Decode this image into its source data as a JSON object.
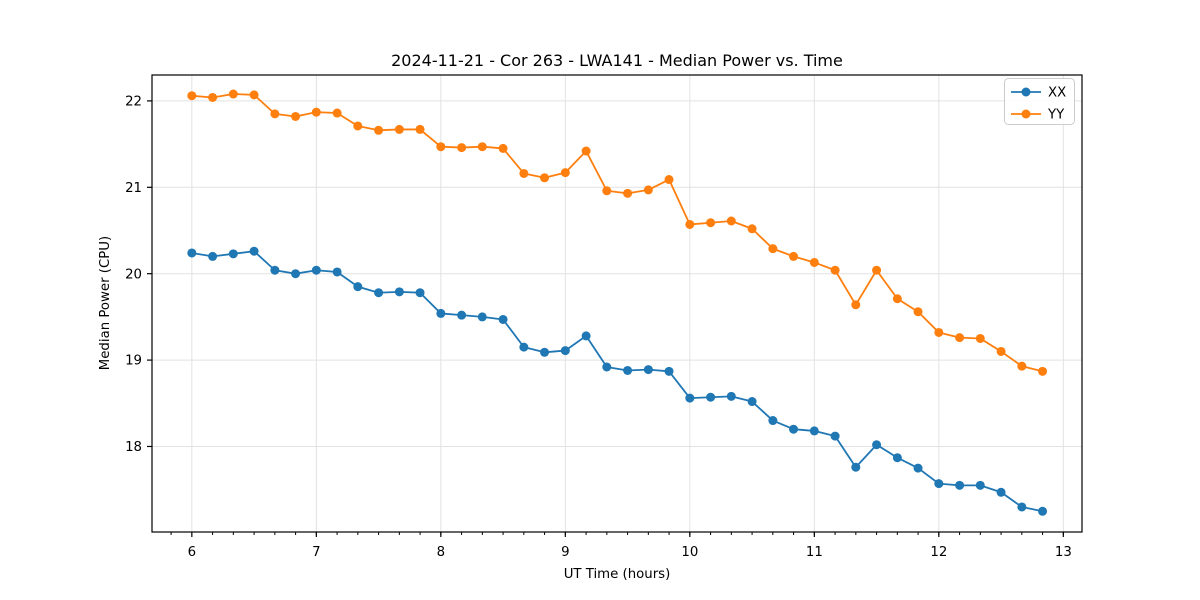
{
  "window": {
    "background": "#ffffff"
  },
  "chart_data": {
    "type": "line",
    "title": "2024-11-21 - Cor 263 - LWA141 - Median Power vs. Time",
    "xlabel": "UT Time (hours)",
    "ylabel": "Median Power (CPU)",
    "xlim": [
      5.68,
      13.15
    ],
    "ylim": [
      17.01,
      22.3
    ],
    "x_ticks": [
      6,
      7,
      8,
      9,
      10,
      11,
      12,
      13
    ],
    "y_ticks": [
      18,
      19,
      20,
      21,
      22
    ],
    "x_minor_step": 0.166667,
    "grid": true,
    "grid_color": "#e2e2e2",
    "axis_color": "#000000",
    "legend": {
      "position": "upper right"
    },
    "x": [
      6,
      6.167,
      6.333,
      6.5,
      6.667,
      6.833,
      7,
      7.167,
      7.333,
      7.5,
      7.667,
      7.833,
      8,
      8.167,
      8.333,
      8.5,
      8.667,
      8.833,
      9,
      9.167,
      9.333,
      9.5,
      9.667,
      9.833,
      10,
      10.167,
      10.333,
      10.5,
      10.667,
      10.833,
      11,
      11.167,
      11.333,
      11.5,
      11.667,
      11.833,
      12,
      12.167,
      12.333,
      12.5,
      12.667,
      12.833
    ],
    "series": [
      {
        "name": "XX",
        "color": "#1f77b4",
        "values": [
          20.24,
          20.2,
          20.23,
          20.26,
          20.04,
          20.0,
          20.04,
          20.02,
          19.85,
          19.78,
          19.79,
          19.78,
          19.54,
          19.52,
          19.5,
          19.47,
          19.15,
          19.09,
          19.11,
          19.28,
          18.92,
          18.88,
          18.89,
          18.87,
          18.56,
          18.57,
          18.58,
          18.52,
          18.3,
          18.2,
          18.18,
          18.12,
          17.76,
          18.02,
          17.87,
          17.75,
          17.57,
          17.55,
          17.55,
          17.47,
          17.3,
          17.25
        ]
      },
      {
        "name": "YY",
        "color": "#ff7f0e",
        "values": [
          22.06,
          22.04,
          22.08,
          22.07,
          21.85,
          21.82,
          21.87,
          21.86,
          21.71,
          21.66,
          21.67,
          21.67,
          21.47,
          21.46,
          21.47,
          21.45,
          21.16,
          21.11,
          21.17,
          21.42,
          20.96,
          20.93,
          20.97,
          21.09,
          20.57,
          20.59,
          20.61,
          20.52,
          20.29,
          20.2,
          20.13,
          20.04,
          19.64,
          20.04,
          19.71,
          19.56,
          19.32,
          19.26,
          19.25,
          19.1,
          18.93,
          18.87
        ]
      }
    ]
  }
}
